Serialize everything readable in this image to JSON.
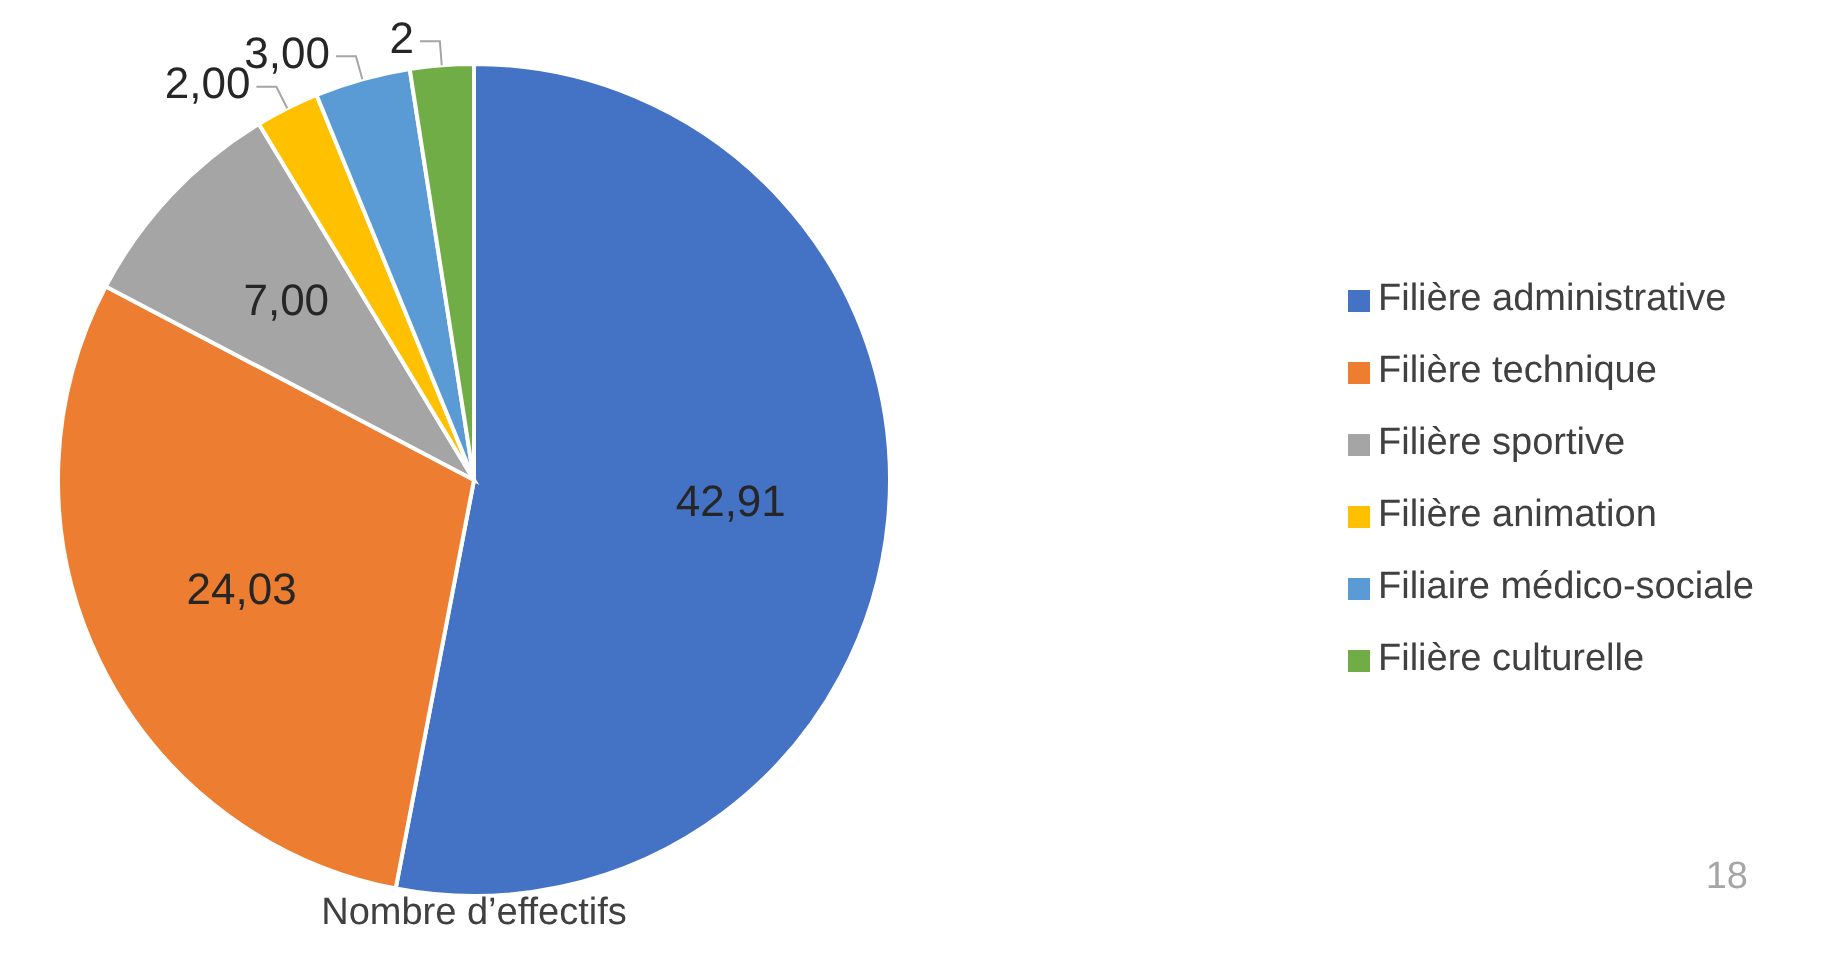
{
  "chart_data": {
    "type": "pie",
    "categories": [
      "Filière administrative",
      "Filière technique",
      "Filière sportive",
      "Filière animation",
      "Filiaire médico-sociale",
      "Filière culturelle"
    ],
    "values": [
      42.91,
      24.03,
      7,
      2,
      3,
      2
    ],
    "value_labels": [
      "42,91",
      "24,03",
      "7,00",
      "2,00",
      "3,00",
      "2"
    ],
    "colors": [
      "#4472c4",
      "#ed7d31",
      "#a5a5a5",
      "#ffc000",
      "#5b9bd5",
      "#70ad47"
    ],
    "legend": "right",
    "annotations": [
      "Nombre d’effectifs",
      "18"
    ]
  }
}
